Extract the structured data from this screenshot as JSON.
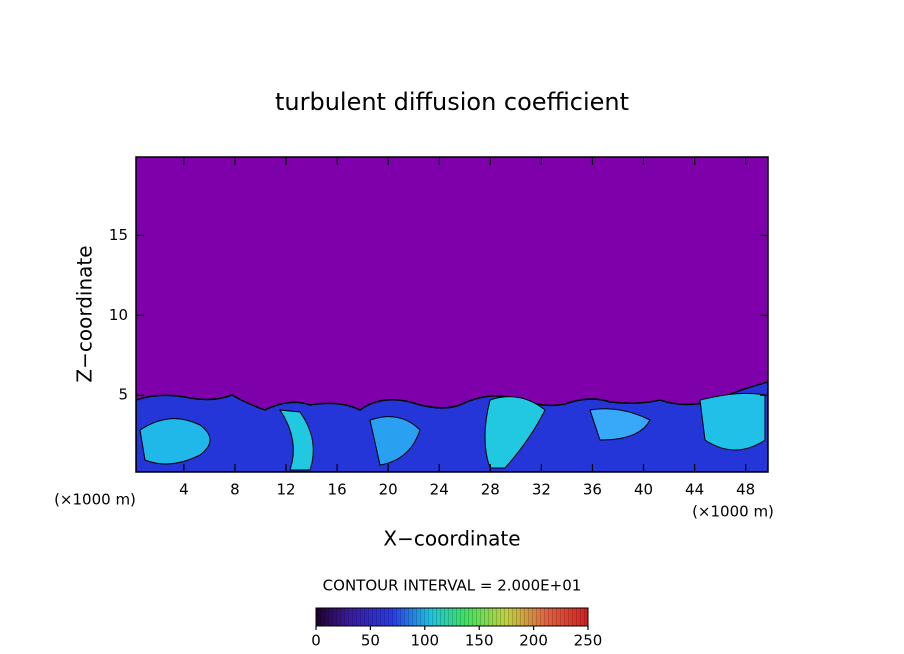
{
  "chart_data": {
    "type": "contour",
    "title": "turbulent diffusion coefficient",
    "x_label": "X−coordinate",
    "y_label": "Z−coordinate",
    "x_unit": "(×1000 m)",
    "xlim": [
      0.25,
      49.75
    ],
    "xticks": [
      4,
      8,
      12,
      16,
      20,
      24,
      28,
      32,
      36,
      40,
      44,
      48
    ],
    "ylim": [
      0.2,
      19.9
    ],
    "yticks": [
      5,
      10,
      15
    ],
    "contour_interval": "CONTOUR INTERVAL = 2.000E+01",
    "clim": [
      0,
      250
    ],
    "cticks": [
      0,
      50,
      100,
      150,
      200,
      250
    ]
  }
}
